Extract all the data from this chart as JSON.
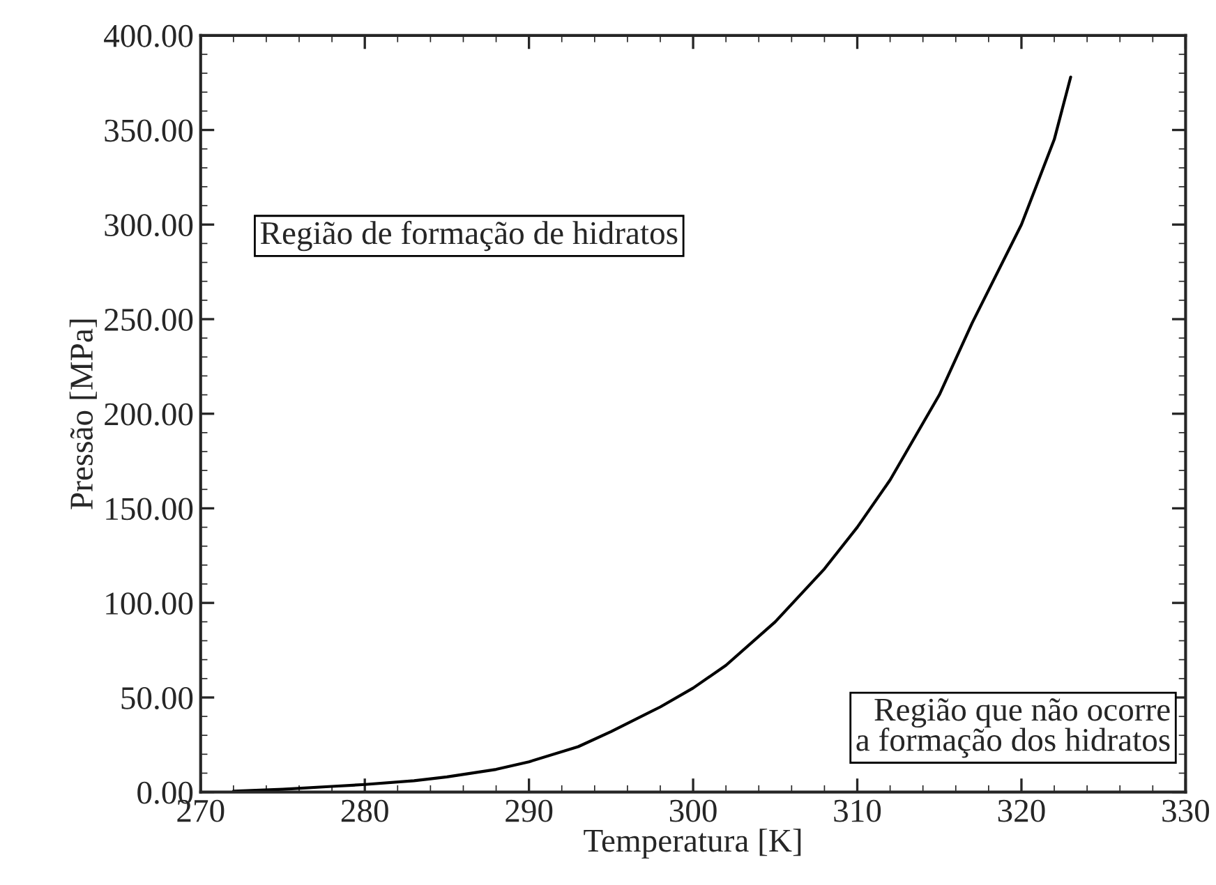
{
  "chart_data": {
    "type": "line",
    "xlabel": "Temperatura [K]",
    "ylabel": "Pressão [MPa]",
    "x": [
      272,
      275,
      278,
      280,
      283,
      285,
      288,
      290,
      293,
      295,
      298,
      300,
      302,
      305,
      308,
      310,
      312,
      315,
      317,
      320,
      322,
      323
    ],
    "series": [
      {
        "color": "#000000",
        "values": [
          0.5,
          1.5,
          3,
          4,
          6,
          8,
          12,
          16,
          24,
          32,
          45,
          55,
          67,
          90,
          118,
          140,
          165,
          210,
          248,
          300,
          345,
          378
        ]
      }
    ],
    "xlim": [
      270,
      330
    ],
    "xticks": [
      270,
      280,
      290,
      300,
      310,
      320,
      330
    ],
    "ylim": [
      0,
      400
    ],
    "yticks": [
      {
        "value": 0,
        "label": "0.00"
      },
      {
        "value": 50,
        "label": "50.00"
      },
      {
        "value": 100,
        "label": "100.00"
      },
      {
        "value": 150,
        "label": "150.00"
      },
      {
        "value": 200,
        "label": "200.00"
      },
      {
        "value": 250,
        "label": "250.00"
      },
      {
        "value": 300,
        "label": "300.00"
      },
      {
        "value": 350,
        "label": "350.00"
      },
      {
        "value": 400,
        "label": "400.00"
      }
    ],
    "grid": false,
    "legend": false,
    "marker": "none",
    "line_style": "solid",
    "annotations": [
      "Região de formação de hidratos",
      "Região que não ocorre\na formação dos hidratos"
    ]
  }
}
